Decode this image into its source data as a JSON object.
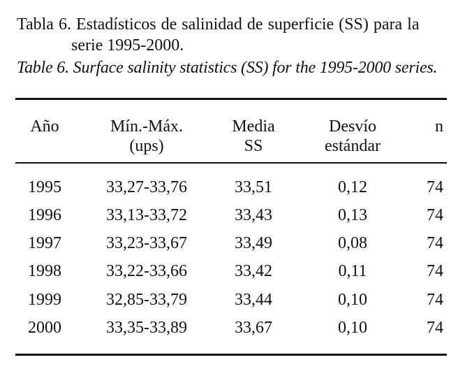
{
  "caption": {
    "spanish_line1": "Tabla 6. Estadísticos de salinidad de superficie (SS) para la",
    "spanish_line2": "serie 1995-2000.",
    "english": "Table 6. Surface salinity statistics (SS) for the 1995-2000 series."
  },
  "table": {
    "headers": {
      "year": "Año",
      "range_line1": "Mín.-Máx.",
      "range_line2": "(ups)",
      "mean_line1": "Media",
      "mean_line2": "SS",
      "sd_line1": "Desvío",
      "sd_line2": "estándar",
      "n": "n"
    },
    "rows": [
      {
        "year": "1995",
        "range": "33,27-33,76",
        "mean": "33,51",
        "sd": "0,12",
        "n": "74"
      },
      {
        "year": "1996",
        "range": "33,13-33,72",
        "mean": "33,43",
        "sd": "0,13",
        "n": "74"
      },
      {
        "year": "1997",
        "range": "33,23-33,67",
        "mean": "33,49",
        "sd": "0,08",
        "n": "74"
      },
      {
        "year": "1998",
        "range": "33,22-33,66",
        "mean": "33,42",
        "sd": "0,11",
        "n": "74"
      },
      {
        "year": "1999",
        "range": "32,85-33,79",
        "mean": "33,44",
        "sd": "0,10",
        "n": "74"
      },
      {
        "year": "2000",
        "range": "33,35-33,89",
        "mean": "33,67",
        "sd": "0,10",
        "n": "74"
      }
    ]
  }
}
